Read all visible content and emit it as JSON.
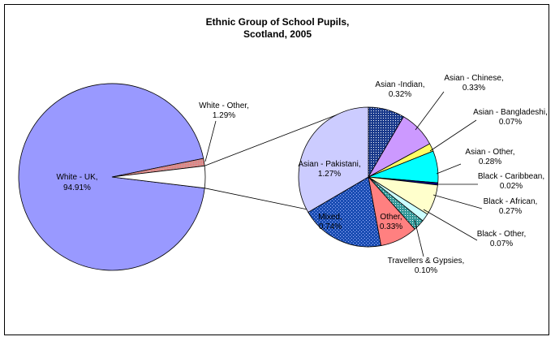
{
  "chart_data": {
    "type": "pie",
    "subtype": "pie-of-pie",
    "title_lines": [
      "Ethnic Group of School Pupils,",
      "Scotland, 2005"
    ],
    "main_pie": {
      "slices": [
        {
          "name": "White - UK,",
          "value_label": "94.91%",
          "value": 94.91,
          "color": "#9999ff"
        },
        {
          "name": "White - Other,",
          "value_label": "1.29%",
          "value": 1.29,
          "color": "#cc9999"
        },
        {
          "name": "",
          "value_label": "",
          "value": 3.8,
          "color": "#ffffff"
        }
      ]
    },
    "secondary_pie": {
      "slices": [
        {
          "name": "Asian -Indian,",
          "value_label": "0.32%",
          "value": 0.32,
          "color": "#1a3a8c"
        },
        {
          "name": "Asian - Chinese,",
          "value_label": "0.33%",
          "value": 0.33,
          "color": "#cc99ff"
        },
        {
          "name": "Asian - Bangladeshi,",
          "value_label": "0.07%",
          "value": 0.07,
          "color": "#ffff66"
        },
        {
          "name": "Asian - Other,",
          "value_label": "0.28%",
          "value": 0.28,
          "color": "#00ffff"
        },
        {
          "name": "Black - Caribbean,",
          "value_label": "0.02%",
          "value": 0.02,
          "color": "#000080"
        },
        {
          "name": "Black - African,",
          "value_label": "0.27%",
          "value": 0.27,
          "color": "#ffffcc"
        },
        {
          "name": "Black - Other,",
          "value_label": "0.07%",
          "value": 0.07,
          "color": "#ccffff"
        },
        {
          "name": "Travellers & Gypsies,",
          "value_label": "0.10%",
          "value": 0.1,
          "color": "#339999"
        },
        {
          "name": "Other,",
          "value_label": "0.33%",
          "value": 0.33,
          "color": "#ff8080"
        },
        {
          "name": "Mixed,",
          "value_label": "0.74%",
          "value": 0.74,
          "color": "#1a4db3"
        },
        {
          "name": "Asian - Pakistani,",
          "value_label": "1.27%",
          "value": 1.27,
          "color": "#ccccff"
        }
      ]
    }
  }
}
